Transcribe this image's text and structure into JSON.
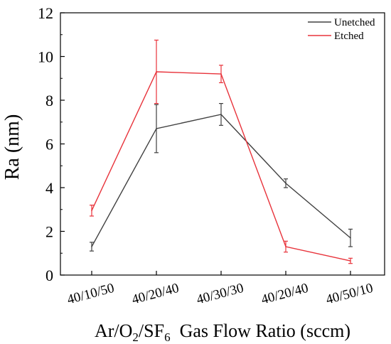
{
  "chart_data": {
    "type": "line",
    "categories": [
      "40/10/50",
      "40/20/40",
      "40/30/30",
      "40/20/40",
      "40/50/10"
    ],
    "series": [
      {
        "name": "Unetched",
        "color": "#404040",
        "values": [
          1.3,
          6.7,
          7.35,
          4.2,
          1.7
        ],
        "errors": [
          0.2,
          1.1,
          0.5,
          0.2,
          0.4
        ]
      },
      {
        "name": "Etched",
        "color": "#e8333b",
        "values": [
          2.95,
          9.3,
          9.2,
          1.3,
          0.65
        ],
        "errors": [
          0.25,
          1.45,
          0.4,
          0.25,
          0.12
        ]
      }
    ],
    "xlabel_main": "Ar/O",
    "xlabel_sub1": "2",
    "xlabel_mid": "/SF",
    "xlabel_sub2": "6",
    "xlabel_tail": "  Gas Flow Ratio (sccm)",
    "ylabel": "Ra (nm)",
    "ylim": [
      0,
      12
    ],
    "yticks": [
      0,
      2,
      4,
      6,
      8,
      10,
      12
    ],
    "legend_position": "top-right",
    "grid": false
  }
}
